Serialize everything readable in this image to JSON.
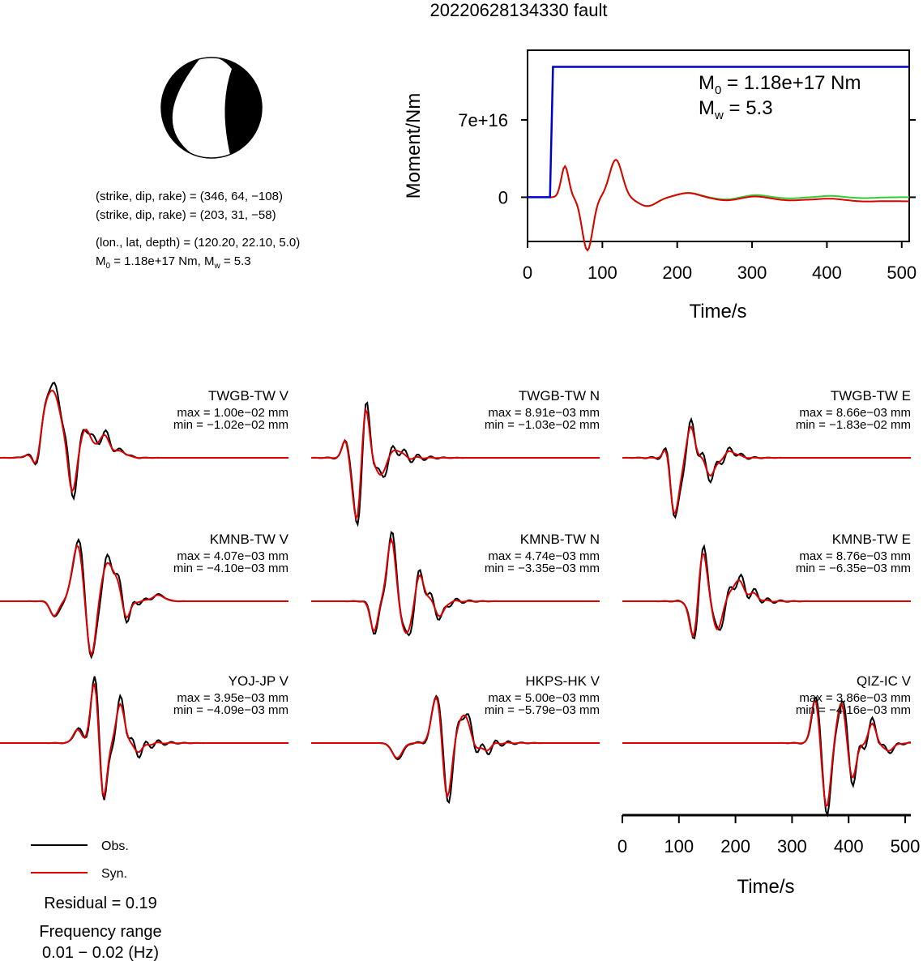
{
  "title": "20220628134330 fault",
  "source_info": {
    "lines": [
      "(strike, dip, rake) = (346, 64, −108)",
      "(strike, dip, rake) = (203, 31, −58)",
      "(lon., lat, depth) = (120.20, 22.10, 5.0)"
    ],
    "moment_line": {
      "m0_sym": "M",
      "m0_sub": "0",
      "m0_text": " = 1.18e+17 Nm, ",
      "mw_sym": "M",
      "mw_sub": "w",
      "mw_text": " = 5.3"
    }
  },
  "colors": {
    "obs": "#000000",
    "syn": "#dd0000",
    "moment": "#0000cc",
    "green": "#33cc33"
  },
  "legend": {
    "obs_label": "Obs.",
    "syn_label": "Syn.",
    "residual": "Residual = 0.19",
    "freq_title": "Frequency range",
    "freq_value": "0.01 − 0.02 (Hz)"
  },
  "chart_data": [
    {
      "type": "line",
      "id": "moment-rate",
      "ylabel": "Moment/Nm",
      "xlabel": "Time/s",
      "xlim": [
        0,
        510
      ],
      "ylim": [
        -40000000000000000,
        133000000000000000
      ],
      "xticks": [
        0,
        100,
        200,
        300,
        400,
        500
      ],
      "yticks": [
        {
          "value": 0,
          "label": "0"
        },
        {
          "value": 70000000000000000,
          "label": "7e+16"
        }
      ],
      "annotation": {
        "m0_sym": "M",
        "m0_sub": "0",
        "m0_text": " = 1.18e+17 Nm",
        "mw_sym": "M",
        "mw_sub": "w",
        "mw_text": " = 5.3"
      },
      "cumulative": {
        "x": [
          0,
          30,
          34,
          510
        ],
        "y": [
          0,
          0,
          118000000000000000,
          118000000000000000
        ]
      }
    },
    {
      "type": "line",
      "id": "waveforms",
      "xlabel": "Time/s",
      "xlim": [
        0,
        510
      ],
      "xticks": [
        0,
        100,
        200,
        300,
        400,
        500
      ],
      "series": [
        {
          "name": "Obs."
        },
        {
          "name": "Syn."
        }
      ],
      "stations": [
        {
          "label": "TWGB-TW V",
          "max": "max = 1.00e−02 mm",
          "min": "min = −1.02e−02 mm"
        },
        {
          "label": "TWGB-TW N",
          "max": "max = 8.91e−03 mm",
          "min": "min = −1.03e−02 mm"
        },
        {
          "label": "TWGB-TW E",
          "max": "max = 8.66e−03 mm",
          "min": "min = −1.83e−02 mm"
        },
        {
          "label": "KMNB-TW V",
          "max": "max = 4.07e−03 mm",
          "min": "min = −4.10e−03 mm"
        },
        {
          "label": "KMNB-TW N",
          "max": "max = 4.74e−03 mm",
          "min": "min = −3.35e−03 mm"
        },
        {
          "label": "KMNB-TW E",
          "max": "max = 8.76e−03 mm",
          "min": "min = −6.35e−03 mm"
        },
        {
          "label": "YOJ-JP V",
          "max": "max = 3.95e−03 mm",
          "min": "min = −4.09e−03 mm"
        },
        {
          "label": "HKPS-HK V",
          "max": "max = 5.00e−03 mm",
          "min": "min = −5.79e−03 mm"
        },
        {
          "label": "QIZ-IC V",
          "max": "max = 3.86e−03 mm",
          "min": "min = −4.16e−03 mm"
        }
      ]
    }
  ]
}
